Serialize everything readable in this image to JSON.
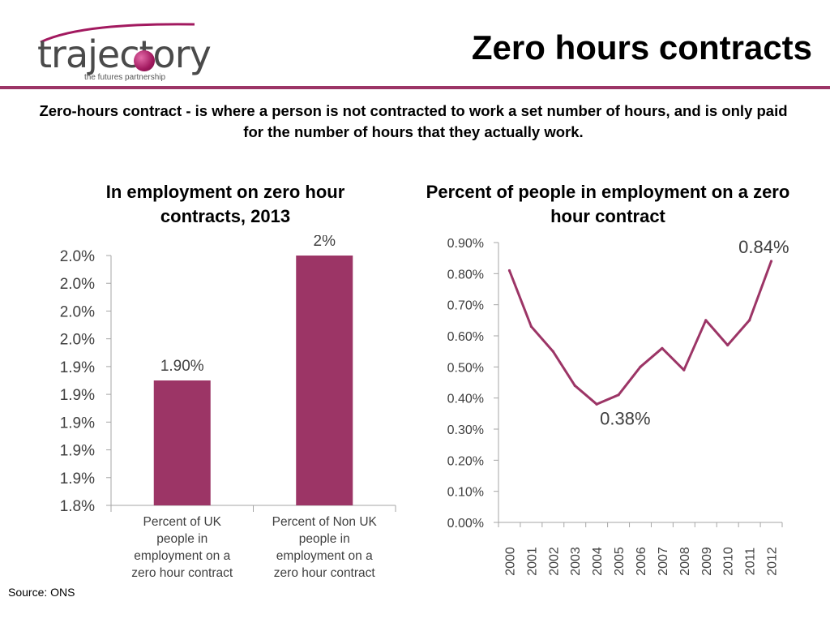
{
  "logo": {
    "wordmark": "trajectory",
    "tagline": "the futures partnership"
  },
  "header": {
    "title": "Zero hours contracts"
  },
  "intro": "Zero-hours contract - is where a person is not contracted to work a set number of hours, and is only paid for the number of hours that they actually work.",
  "source": "Source: ONS",
  "colors": {
    "accent": "#9c3566",
    "bar": "#9c3566",
    "line": "#9c3566",
    "axis": "#a6a6a6"
  },
  "chart_data": [
    {
      "type": "bar",
      "title": "In employment on zero hour contracts, 2013",
      "categories": [
        [
          "Percent of UK",
          "people in",
          "employment on a",
          "zero hour contract"
        ],
        [
          "Percent of Non UK",
          "people in",
          "employment on a",
          "zero hour contract"
        ]
      ],
      "values": [
        1.9,
        2.0
      ],
      "data_labels": [
        "1.90%",
        "2%"
      ],
      "ylim": [
        1.8,
        2.0
      ],
      "y_ticks": [
        "1.8%",
        "1.9%",
        "1.9%",
        "1.9%",
        "1.9%",
        "1.9%",
        "2.0%",
        "2.0%",
        "2.0%",
        "2.0%"
      ],
      "grid": false,
      "legend": "none"
    },
    {
      "type": "line",
      "title": "Percent of people in employment on a zero hour contract",
      "x": [
        "2000",
        "2001",
        "2002",
        "2003",
        "2004",
        "2005",
        "2006",
        "2007",
        "2008",
        "2009",
        "2010",
        "2011",
        "2012"
      ],
      "y": [
        0.81,
        0.63,
        0.55,
        0.44,
        0.38,
        0.41,
        0.5,
        0.56,
        0.49,
        0.65,
        0.57,
        0.65,
        0.84
      ],
      "ylim": [
        0.0,
        0.9
      ],
      "y_ticks": [
        "0.00%",
        "0.10%",
        "0.20%",
        "0.30%",
        "0.40%",
        "0.50%",
        "0.60%",
        "0.70%",
        "0.80%",
        "0.90%"
      ],
      "annotations": [
        {
          "label": "0.38%",
          "x": "2004",
          "y": 0.38
        },
        {
          "label": "0.84%",
          "x": "2012",
          "y": 0.84
        }
      ],
      "grid": false,
      "legend": "none"
    }
  ]
}
